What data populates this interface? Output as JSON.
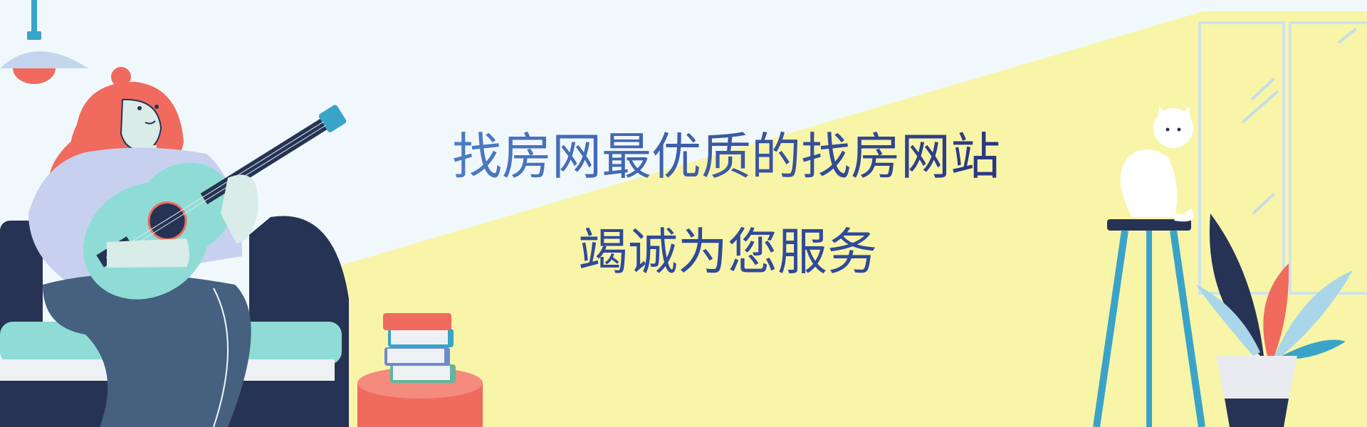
{
  "banner": {
    "headline": "找房网最优质的找房网站",
    "subheadline": "竭诚为您服务"
  },
  "colors": {
    "sky": "#f1f8fc",
    "wall_yellow": "#f8f5a8",
    "headline_start": "#4a76c0",
    "headline_end": "#2b3b86",
    "hair": "#f06a5e",
    "sweater": "#c7d1ef",
    "sofa": "#273354",
    "guitar": "#8fdcd6",
    "stool": "#3aa3c8",
    "pot": "#e9ebf0"
  },
  "icons": [
    "pendant-lamp-icon",
    "woman-with-guitar-illustration",
    "book-stack-icon",
    "side-table-icon",
    "cat-illustration",
    "stool-icon",
    "potted-plant-icon",
    "window-icon"
  ]
}
